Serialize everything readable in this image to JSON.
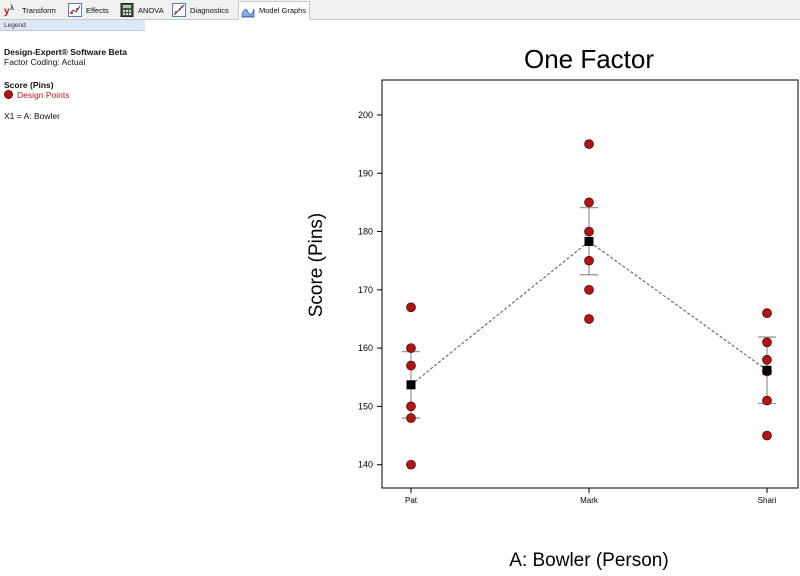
{
  "tabs": [
    {
      "label": "Transform",
      "icon": "transform-icon"
    },
    {
      "label": "Effects",
      "icon": "effects-icon"
    },
    {
      "label": "ANOVA",
      "icon": "anova-icon"
    },
    {
      "label": "Diagnostics",
      "icon": "diagnostics-icon"
    },
    {
      "label": "Model Graphs",
      "icon": "model-graphs-icon",
      "active": true
    }
  ],
  "legend": {
    "header": "Legend",
    "software": "Design-Expert® Software Beta",
    "coding": "Factor Coding: Actual",
    "response": "Score (Pins)",
    "points_label": "Design Points",
    "factor": "X1 = A: Bowler"
  },
  "colors": {
    "point_fill": "#b51414",
    "point_stroke": "#5a0a0a",
    "mean_marker": "#000000",
    "error_bar": "#9a9a9a",
    "connector": "#6e6e6e"
  },
  "chart_data": {
    "type": "scatter",
    "title": "One Factor",
    "xlabel": "A: Bowler (Person)",
    "ylabel": "Score (Pins)",
    "categories": [
      "Pat",
      "Mark",
      "Shari"
    ],
    "ylim": [
      136,
      206
    ],
    "yticks": [
      140,
      150,
      160,
      170,
      180,
      190,
      200
    ],
    "grid": false,
    "points": [
      [
        167,
        160,
        157,
        150,
        148,
        140
      ],
      [
        195,
        185,
        180,
        175,
        170,
        165
      ],
      [
        166,
        161,
        158,
        156,
        151,
        145
      ]
    ],
    "means": [
      153.7,
      178.3,
      156.2
    ],
    "lsd_upper": [
      159.4,
      184.1,
      161.9
    ],
    "lsd_lower": [
      148.0,
      172.6,
      150.5
    ]
  }
}
